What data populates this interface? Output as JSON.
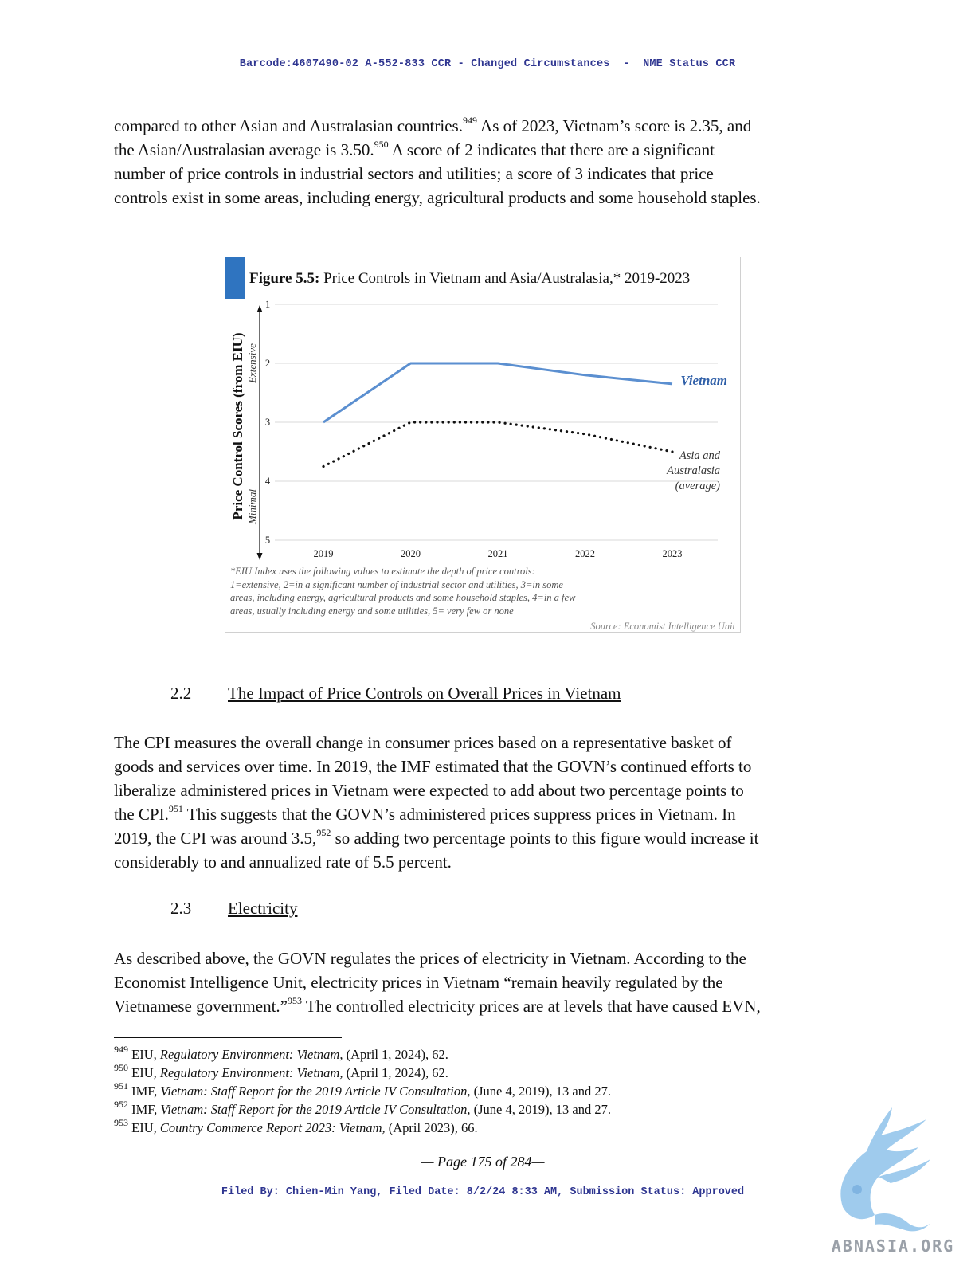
{
  "header": "Barcode:4607490-02 A-552-833 CCR - Changed Circumstances  -  NME Status CCR",
  "para1": {
    "lines": [
      {
        "t": "compared to other Asian and Australasian countries.",
        "sup": "949",
        "t2": " As of 2023, Vietnam’s score is 2.35, and"
      },
      {
        "t": "the Asian/Australasian average is 3.50.",
        "sup": "950",
        "t2": " A score of 2 indicates that there are a significant"
      },
      {
        "t": "number of price controls in industrial sectors and utilities; a score of 3 indicates that price",
        "sup": "",
        "t2": ""
      },
      {
        "t": "controls exist in some areas, including energy, agricultural products and some household staples.",
        "sup": "",
        "t2": ""
      }
    ]
  },
  "figure": {
    "title_bold": "Figure 5.5:",
    "title_rest": " Price Controls in Vietnam and Asia/Australasia,* 2019-2023",
    "y_title": "Price Control Scores (from EIU)",
    "y_top_label": "Extensive",
    "y_bottom_label": "Minimal",
    "note": "*EIU Index uses the following values to estimate the depth of price controls: 1=extensive, 2=in a significant number of industrial sector and utilities, 3=in some areas, including energy, agricultural products and some household staples, 4=in a few areas, usually including energy and some utilities, 5= very few or none",
    "source": "Source: Economist Intelligence Unit"
  },
  "chart_data": {
    "type": "line",
    "title": "Figure 5.5: Price Controls in Vietnam and Asia/Australasia,* 2019-2023",
    "ylabel": "Price Control Scores (from EIU)",
    "x": [
      "2019",
      "2020",
      "2021",
      "2022",
      "2023"
    ],
    "yticks": [
      "1",
      "2",
      "3",
      "4",
      "5"
    ],
    "ylim": [
      1,
      5
    ],
    "y_inverted": true,
    "grid": true,
    "series": [
      {
        "name": "Vietnam",
        "label_lines": [
          "Vietnam"
        ],
        "color": "#5b8fd0",
        "style": "solid",
        "values": [
          3.0,
          2.0,
          2.0,
          2.2,
          2.35
        ]
      },
      {
        "name": "Asia and Australasia (average)",
        "label_lines": [
          "Asia and",
          "Australasia",
          "(average)"
        ],
        "color": "#111111",
        "style": "dotted",
        "values": [
          3.75,
          3.0,
          3.0,
          3.2,
          3.5
        ]
      }
    ]
  },
  "section_2_2": {
    "num": "2.2",
    "title": "The Impact of Price Controls on Overall Prices in Vietnam"
  },
  "para2": {
    "lines": [
      {
        "t": "The CPI measures the overall change in consumer prices based on a representative basket of",
        "sup": "",
        "t2": ""
      },
      {
        "t": "goods and services over time. In 2019, the IMF estimated that the GOVN’s continued efforts to",
        "sup": "",
        "t2": ""
      },
      {
        "t": "liberalize  administered prices in Vietnam were expected to add about two percentage points to",
        "sup": "",
        "t2": ""
      },
      {
        "t": "the CPI.",
        "sup": "951",
        "t2": " This suggests that the GOVN’s administered prices suppress prices in Vietnam. In"
      },
      {
        "t": "2019, the CPI was around 3.5,",
        "sup": "952",
        "t2": " so adding two percentage points to this figure would increase it"
      },
      {
        "t": "considerably to and annualized rate of 5.5 percent.",
        "sup": "",
        "t2": ""
      }
    ]
  },
  "section_2_3": {
    "num": "2.3",
    "title": "Electricity"
  },
  "para3": {
    "lines": [
      {
        "t": "As described above, the GOVN regulates the prices of electricity in Vietnam. According to the",
        "sup": "",
        "t2": ""
      },
      {
        "t": "Economist Intelligence Unit, electricity prices in Vietnam “remain heavily regulated by the",
        "sup": "",
        "t2": ""
      },
      {
        "t": "Vietnamese government.”",
        "sup": "953",
        "t2": " The controlled electricity prices are at levels that have caused EVN,"
      }
    ]
  },
  "footnotes": [
    {
      "num": "949",
      "pre": " EIU, ",
      "title": "Regulatory Environment: Vietnam,",
      "post": " (April 1, 2024), 62."
    },
    {
      "num": "950",
      "pre": " EIU, ",
      "title": "Regulatory Environment: Vietnam,",
      "post": " (April 1, 2024), 62."
    },
    {
      "num": "951",
      "pre": " IMF, ",
      "title": "Vietnam: Staff Report for the 2019 Article IV Consultation,",
      "post": " (June 4, 2019), 13 and 27."
    },
    {
      "num": "952",
      "pre": " IMF, ",
      "title": "Vietnam: Staff Report for the 2019 Article IV Consultation,",
      "post": " (June 4, 2019), 13 and 27."
    },
    {
      "num": "953",
      "pre": " EIU, ",
      "title": "Country Commerce Report 2023: Vietnam,",
      "post": " (April 2023), 66."
    }
  ],
  "page_number": "— Page 175 of 284—",
  "footer": "Filed By: Chien-Min Yang, Filed Date: 8/2/24 8:33 AM, Submission Status: Approved",
  "watermark": {
    "text": "ABNASIA.ORG",
    "icon": "griffin-logo",
    "color": "#7fb8e6"
  }
}
